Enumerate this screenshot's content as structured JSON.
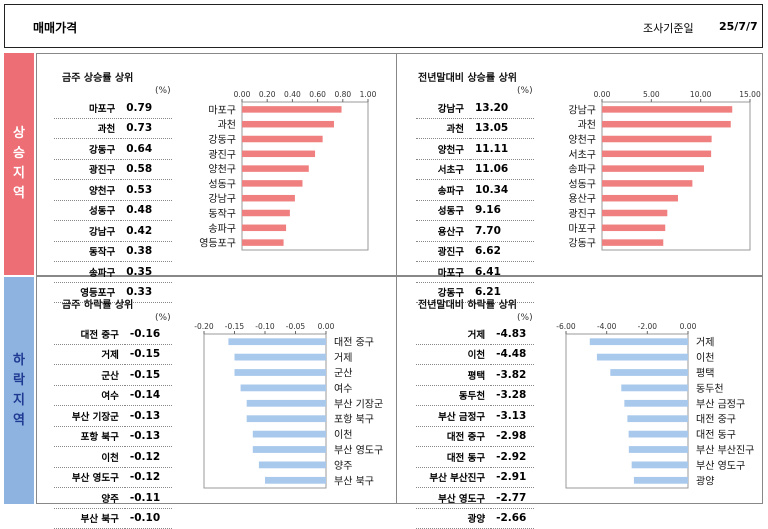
{
  "header": {
    "title": "매매가격",
    "date_label": "조사기준일",
    "date_value": "25/7/7"
  },
  "side": {
    "up_label": [
      "상",
      "승",
      "지",
      "역"
    ],
    "down_label": [
      "하",
      "락",
      "지",
      "역"
    ]
  },
  "unit_label": "(%)",
  "colors": {
    "up_bar": "#f08080",
    "down_bar": "#a8c8ec",
    "up_side": "#ee6e76",
    "down_side": "#8fb3e0"
  },
  "panels": {
    "weekly_up": {
      "title": "금주 상승률 상위"
    },
    "yearly_up": {
      "title": "전년말대비 상승률 상위"
    },
    "weekly_down": {
      "title": "금주 하락률 상위"
    },
    "yearly_down": {
      "title": "전년말대비 하락률 상위"
    }
  },
  "chart_data": [
    {
      "id": "weekly_up",
      "type": "bar",
      "categories": [
        "마포구",
        "과천",
        "강동구",
        "광진구",
        "양천구",
        "성동구",
        "강남구",
        "동작구",
        "송파구",
        "영등포구"
      ],
      "chart_labels": [
        "마포구",
        "과천",
        "강동구",
        "광진구",
        "양천구",
        "성동구",
        "강남구",
        "동작구",
        "송파구",
        "영등포구"
      ],
      "values": [
        0.79,
        0.73,
        0.64,
        0.58,
        0.53,
        0.48,
        0.42,
        0.38,
        0.35,
        0.33
      ],
      "value_labels": [
        "0.79",
        "0.73",
        "0.64",
        "0.58",
        "0.53",
        "0.48",
        "0.42",
        "0.38",
        "0.35",
        "0.33"
      ],
      "xlim": [
        0,
        1.0
      ],
      "ticks": [
        "0.00",
        "0.20",
        "0.40",
        "0.60",
        "0.80",
        "1.00"
      ]
    },
    {
      "id": "yearly_up",
      "type": "bar",
      "categories": [
        "강남구",
        "과천",
        "양천구",
        "서초구",
        "송파구",
        "성동구",
        "용산구",
        "광진구",
        "마포구",
        "강동구"
      ],
      "chart_labels": [
        "강남구",
        "과천",
        "양천구",
        "서초구",
        "송파구",
        "성동구",
        "용산구",
        "광진구",
        "마포구",
        "강동구"
      ],
      "values": [
        13.2,
        13.05,
        11.11,
        11.06,
        10.34,
        9.16,
        7.7,
        6.62,
        6.41,
        6.21
      ],
      "value_labels": [
        "13.20",
        "13.05",
        "11.11",
        "11.06",
        "10.34",
        "9.16",
        "7.70",
        "6.62",
        "6.41",
        "6.21"
      ],
      "xlim": [
        0,
        15
      ],
      "ticks": [
        "0.00",
        "5.00",
        "10.00",
        "15.00"
      ]
    },
    {
      "id": "weekly_down",
      "type": "bar",
      "categories": [
        "대전 중구",
        "거제",
        "군산",
        "여수",
        "부산 기장군",
        "포항 북구",
        "이천",
        "부산 영도구",
        "양주",
        "부산 북구"
      ],
      "chart_labels": [
        "대전 중구",
        "거제",
        "군산",
        "여수",
        "부산 기장군",
        "포항 북구",
        "이천",
        "부산 영도구",
        "양주",
        "부산 북구"
      ],
      "values": [
        -0.16,
        -0.15,
        -0.15,
        -0.14,
        -0.13,
        -0.13,
        -0.12,
        -0.12,
        -0.11,
        -0.1
      ],
      "value_labels": [
        "-0.16",
        "-0.15",
        "-0.15",
        "-0.14",
        "-0.13",
        "-0.13",
        "-0.12",
        "-0.12",
        "-0.11",
        "-0.10"
      ],
      "xlim": [
        -0.2,
        0
      ],
      "ticks": [
        "-0.20",
        "-0.15",
        "-0.10",
        "-0.05",
        "0.00"
      ]
    },
    {
      "id": "yearly_down",
      "type": "bar",
      "categories": [
        "거제",
        "이천",
        "평택",
        "동두천",
        "부산 금정구",
        "대전 중구",
        "대전 동구",
        "부산 부산진구",
        "부산 영도구",
        "광양"
      ],
      "chart_labels": [
        "거제",
        "이천",
        "평택",
        "동두천",
        "부산 금정구",
        "대전 중구",
        "대전 동구",
        "부산 부산진구",
        "부산 영도구",
        "광양"
      ],
      "table_labels": [
        "거제",
        "이천",
        "평택",
        "동두천",
        "부산 금정구",
        "대전 중구",
        "대전 동구",
        "부산 부산진구",
        "부산 영도구",
        "광양"
      ],
      "values": [
        -4.83,
        -4.48,
        -3.82,
        -3.28,
        -3.13,
        -2.98,
        -2.92,
        -2.91,
        -2.77,
        -2.66
      ],
      "value_labels": [
        "-4.83",
        "-4.48",
        "-3.82",
        "-3.28",
        "-3.13",
        "-2.98",
        "-2.92",
        "-2.91",
        "-2.77",
        "-2.66"
      ],
      "xlim": [
        -6,
        0
      ],
      "ticks": [
        "-6.00",
        "-4.00",
        "-2.00",
        "0.00"
      ]
    }
  ]
}
